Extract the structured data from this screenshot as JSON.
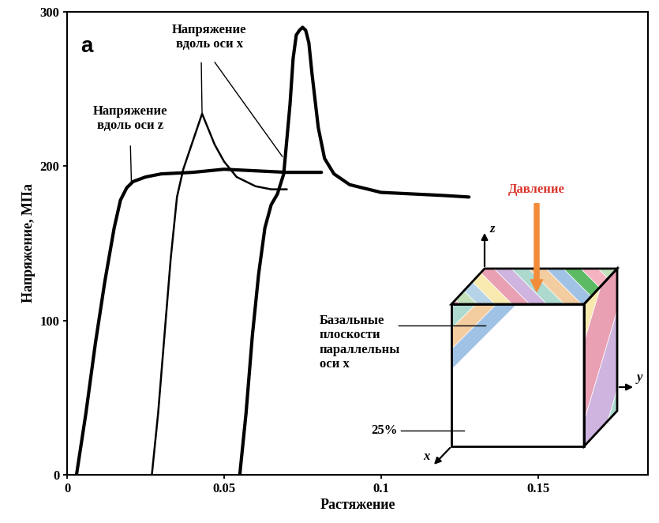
{
  "chart_data": {
    "type": "line",
    "panel_label": "a",
    "xlabel": "Растяжение",
    "ylabel": "Напряжение, МПа",
    "xlim": [
      0,
      0.185
    ],
    "ylim": [
      0,
      300
    ],
    "xticks": [
      0,
      0.05,
      0.1,
      0.15
    ],
    "yticks": [
      0,
      100,
      200,
      300
    ],
    "series": [
      {
        "color": "#000000",
        "x": [
          0.003,
          0.006,
          0.009,
          0.012,
          0.015,
          0.017,
          0.019,
          0.021,
          0.025,
          0.03,
          0.04,
          0.05,
          0.06,
          0.07,
          0.081
        ],
        "values": [
          0,
          40,
          85,
          125,
          160,
          178,
          186,
          190,
          193,
          195,
          196,
          198,
          197,
          196,
          196
        ]
      },
      {
        "color": "#000000",
        "x": [
          0.027,
          0.029,
          0.031,
          0.033,
          0.035,
          0.037,
          0.039,
          0.041,
          0.043,
          0.045,
          0.047,
          0.05,
          0.054,
          0.06,
          0.065,
          0.07
        ],
        "values": [
          0,
          40,
          90,
          140,
          180,
          198,
          210,
          222,
          234,
          224,
          214,
          203,
          193,
          187,
          185,
          185
        ]
      },
      {
        "color": "#000000",
        "x": [
          0.055,
          0.057,
          0.059,
          0.061,
          0.063,
          0.065,
          0.067,
          0.069,
          0.071,
          0.072,
          0.073,
          0.074,
          0.075,
          0.076,
          0.077,
          0.078,
          0.08,
          0.082,
          0.085,
          0.09,
          0.1,
          0.11,
          0.12,
          0.128
        ],
        "values": [
          0,
          40,
          90,
          130,
          160,
          175,
          182,
          195,
          240,
          270,
          285,
          288,
          290,
          288,
          280,
          260,
          225,
          205,
          195,
          188,
          183,
          182,
          181,
          180
        ]
      }
    ],
    "annotations": [
      {
        "text": "Напряжение\nвдоль оси z",
        "points": [
          [
            0.0205,
            188
          ]
        ]
      },
      {
        "text": "Напряжение\nвдоль оси x",
        "points": [
          [
            0.043,
            233
          ],
          [
            0.069,
            205
          ]
        ]
      }
    ],
    "inset": {
      "pressure": {
        "text": "Давление",
        "color": "#d9342b"
      },
      "axis_labels": [
        "x",
        "y",
        "z"
      ],
      "basal_label": "Базальные\nплоскости\nпараллельны\nоси x",
      "fraction_label": "25%"
    }
  }
}
